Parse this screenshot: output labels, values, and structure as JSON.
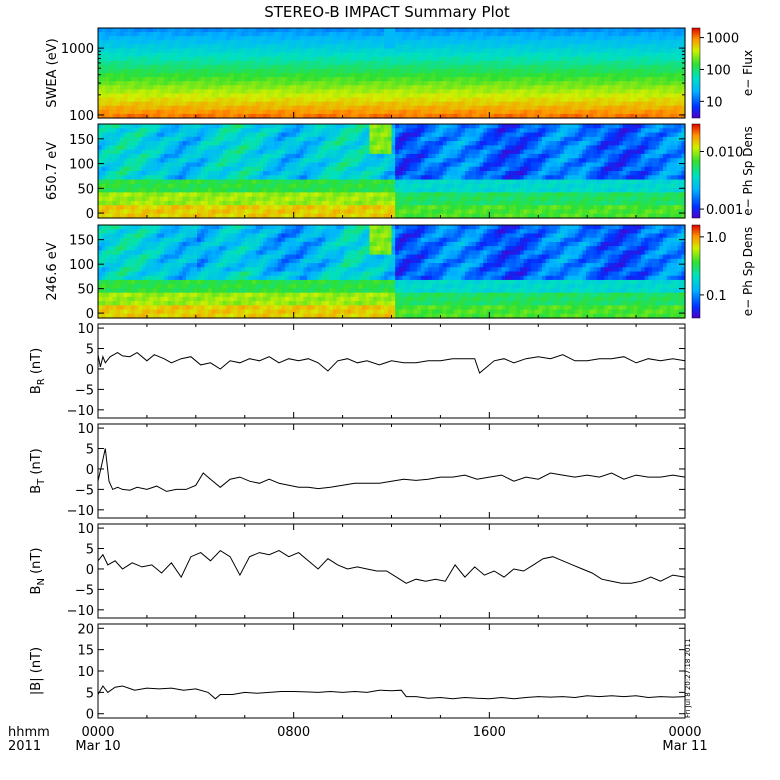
{
  "title": "STEREO-B IMPACT Summary Plot",
  "x_axis": {
    "corner_label_line1": "hhmm",
    "corner_label_line2": "2011",
    "range_hours": [
      0,
      24
    ],
    "ticks": [
      {
        "hour": 0,
        "label": "0000",
        "sublabel": "Mar 10"
      },
      {
        "hour": 8,
        "label": "0800",
        "sublabel": ""
      },
      {
        "hour": 16,
        "label": "1600",
        "sublabel": ""
      },
      {
        "hour": 24,
        "label": "0000",
        "sublabel": "Mar 11"
      }
    ]
  },
  "timestamp": "Fri Jul 8 20:27:18 2011",
  "spectrograms": [
    {
      "id": "swea",
      "ylabel": "SWEA (eV)",
      "yscale": "log",
      "ylim": [
        90,
        2000
      ],
      "yticks": [
        {
          "v": 100,
          "label": "100"
        },
        {
          "v": 1000,
          "label": "1000"
        }
      ],
      "colorbar": {
        "label": "e− Flux",
        "scale": "log",
        "range": [
          3,
          2000
        ],
        "ticks": [
          {
            "v": 10,
            "label": "10"
          },
          {
            "v": 100,
            "label": "100"
          },
          {
            "v": 1000,
            "label": "1000"
          }
        ]
      }
    },
    {
      "id": "pad650",
      "ylabel": "650.7 eV",
      "yscale": "linear",
      "ylim": [
        -10,
        180
      ],
      "yticks": [
        {
          "v": 0,
          "label": "0"
        },
        {
          "v": 50,
          "label": "50"
        },
        {
          "v": 100,
          "label": "100"
        },
        {
          "v": 150,
          "label": "150"
        }
      ],
      "colorbar": {
        "label": "e− Ph Sp Dens",
        "scale": "log",
        "range": [
          0.0007,
          0.03
        ],
        "ticks": [
          {
            "v": 0.001,
            "label": "0.001"
          },
          {
            "v": 0.01,
            "label": "0.010"
          }
        ]
      }
    },
    {
      "id": "pad246",
      "ylabel": "246.6 eV",
      "yscale": "linear",
      "ylim": [
        -10,
        180
      ],
      "yticks": [
        {
          "v": 0,
          "label": "0"
        },
        {
          "v": 50,
          "label": "50"
        },
        {
          "v": 100,
          "label": "100"
        },
        {
          "v": 150,
          "label": "150"
        }
      ],
      "colorbar": {
        "label": "e− Ph Sp Dens",
        "scale": "log",
        "range": [
          0.04,
          1.6
        ],
        "ticks": [
          {
            "v": 0.1,
            "label": "0.1"
          },
          {
            "v": 1.0,
            "label": "1.0"
          }
        ]
      }
    }
  ],
  "chart_data": [
    {
      "type": "line",
      "panel": "BR",
      "ylabel_main": "B",
      "ylabel_sub": "R",
      "ylabel_unit": "(nT)",
      "ylim": [
        -12,
        11
      ],
      "yticks": [
        {
          "v": -10,
          "label": "−10"
        },
        {
          "v": -5,
          "label": "−5"
        },
        {
          "v": 0,
          "label": "0"
        },
        {
          "v": 5,
          "label": "5"
        },
        {
          "v": 10,
          "label": "10"
        }
      ],
      "x": [
        0,
        0.1,
        0.2,
        0.3,
        0.5,
        0.8,
        1.0,
        1.3,
        1.6,
        2.0,
        2.3,
        2.7,
        3.0,
        3.4,
        3.8,
        4.2,
        4.6,
        5.0,
        5.4,
        5.8,
        6.2,
        6.6,
        7.0,
        7.4,
        7.8,
        8.2,
        8.6,
        9.0,
        9.4,
        9.8,
        10.2,
        10.6,
        11.0,
        11.5,
        12.0,
        12.5,
        13.0,
        13.5,
        14.0,
        14.5,
        15.0,
        15.4,
        15.6,
        15.8,
        16.2,
        16.6,
        17.0,
        17.5,
        18.0,
        18.5,
        19.0,
        19.5,
        20.0,
        20.5,
        21.0,
        21.5,
        22.0,
        22.5,
        23.0,
        23.5,
        24.0
      ],
      "y": [
        3.5,
        0.5,
        3,
        1.5,
        3,
        4,
        3.2,
        3,
        4,
        2,
        3.5,
        2.5,
        1.5,
        2.5,
        3,
        1,
        1.5,
        0,
        2,
        1.5,
        2.5,
        2,
        3,
        1.5,
        2.5,
        2,
        2.5,
        1.5,
        -0.5,
        2,
        2.5,
        1.5,
        2,
        1,
        2,
        1.5,
        1.5,
        2,
        2,
        2.5,
        2.5,
        2.5,
        -1,
        0,
        2,
        2.5,
        1.5,
        2.5,
        3,
        2.5,
        3.5,
        2,
        2,
        2.5,
        2.5,
        3,
        1.5,
        2.5,
        2,
        2.5,
        2
      ]
    },
    {
      "type": "line",
      "panel": "BT",
      "ylabel_main": "B",
      "ylabel_sub": "T",
      "ylabel_unit": "(nT)",
      "ylim": [
        -12,
        11
      ],
      "yticks": [
        {
          "v": -10,
          "label": "−10"
        },
        {
          "v": -5,
          "label": "−5"
        },
        {
          "v": 0,
          "label": "0"
        },
        {
          "v": 5,
          "label": "5"
        },
        {
          "v": 10,
          "label": "10"
        }
      ],
      "x": [
        0,
        0.15,
        0.3,
        0.45,
        0.6,
        0.8,
        1.0,
        1.3,
        1.6,
        2.0,
        2.4,
        2.8,
        3.2,
        3.6,
        4.0,
        4.3,
        4.6,
        5.0,
        5.4,
        5.8,
        6.2,
        6.6,
        7.0,
        7.4,
        7.8,
        8.2,
        8.6,
        9.0,
        9.5,
        10.0,
        10.5,
        11.0,
        11.5,
        12.0,
        12.5,
        13.0,
        13.5,
        14.0,
        14.5,
        15.0,
        15.5,
        16.0,
        16.5,
        17.0,
        17.5,
        18.0,
        18.5,
        19.0,
        19.5,
        20.0,
        20.5,
        21.0,
        21.5,
        22.0,
        22.5,
        23.0,
        23.5,
        24.0
      ],
      "y": [
        -3,
        1,
        5,
        -3,
        -5,
        -4.5,
        -5,
        -5.2,
        -4.5,
        -5,
        -4.2,
        -5.5,
        -5,
        -5,
        -4,
        -1,
        -2.5,
        -4.5,
        -2.5,
        -2,
        -3,
        -3.5,
        -2.5,
        -3.5,
        -4,
        -4.5,
        -4.5,
        -4.8,
        -4.5,
        -4,
        -3.5,
        -3.5,
        -3.5,
        -3,
        -2.5,
        -2.8,
        -2.5,
        -2,
        -2,
        -1.5,
        -2.5,
        -2,
        -1.5,
        -3,
        -2,
        -2.5,
        -1,
        -1.5,
        -2,
        -1.5,
        -2,
        -1,
        -2.5,
        -1.5,
        -2,
        -2,
        -1.5,
        -2
      ]
    },
    {
      "type": "line",
      "panel": "BN",
      "ylabel_main": "B",
      "ylabel_sub": "N",
      "ylabel_unit": "(nT)",
      "ylim": [
        -12,
        11
      ],
      "yticks": [
        {
          "v": -10,
          "label": "−10"
        },
        {
          "v": -5,
          "label": "−5"
        },
        {
          "v": 0,
          "label": "0"
        },
        {
          "v": 5,
          "label": "5"
        },
        {
          "v": 10,
          "label": "10"
        }
      ],
      "x": [
        0,
        0.2,
        0.4,
        0.7,
        1.0,
        1.4,
        1.8,
        2.2,
        2.6,
        3.0,
        3.4,
        3.8,
        4.2,
        4.6,
        5.0,
        5.4,
        5.8,
        6.2,
        6.6,
        7.0,
        7.4,
        7.8,
        8.2,
        8.6,
        9.0,
        9.4,
        9.8,
        10.2,
        10.6,
        11.0,
        11.4,
        11.8,
        12.2,
        12.6,
        13.0,
        13.4,
        13.8,
        14.2,
        14.6,
        15.0,
        15.4,
        15.8,
        16.2,
        16.6,
        17.0,
        17.4,
        17.8,
        18.2,
        18.6,
        19.0,
        19.4,
        19.8,
        20.2,
        20.6,
        21.0,
        21.4,
        21.8,
        22.2,
        22.6,
        23.0,
        23.5,
        24.0
      ],
      "y": [
        2,
        3.5,
        1,
        2,
        0,
        1.5,
        0.5,
        1,
        -1,
        1.5,
        -2,
        3,
        4,
        2,
        4.5,
        3,
        -1.5,
        3,
        4,
        3.5,
        4.5,
        3,
        4,
        2,
        0,
        2.5,
        1,
        0,
        0.5,
        0,
        -0.5,
        -0.5,
        -2,
        -3.5,
        -2.5,
        -3,
        -2.5,
        -3,
        1,
        -2,
        0.5,
        -1.5,
        -0.5,
        -2,
        0,
        -0.5,
        1,
        2.5,
        3,
        2,
        1,
        0,
        -1,
        -2.5,
        -3,
        -3.5,
        -3.5,
        -3,
        -2,
        -3,
        -1.5,
        -2
      ]
    },
    {
      "type": "line",
      "panel": "Bmag",
      "ylabel_main": "|B|",
      "ylabel_sub": "",
      "ylabel_unit": "(nT)",
      "ylim": [
        -1,
        21
      ],
      "yticks": [
        {
          "v": 0,
          "label": "0"
        },
        {
          "v": 5,
          "label": "5"
        },
        {
          "v": 10,
          "label": "10"
        },
        {
          "v": 15,
          "label": "15"
        },
        {
          "v": 20,
          "label": "20"
        }
      ],
      "x": [
        0,
        0.2,
        0.4,
        0.7,
        1.0,
        1.5,
        2.0,
        2.5,
        3.0,
        3.5,
        4.0,
        4.5,
        4.8,
        5.0,
        5.5,
        6.0,
        6.5,
        7.0,
        7.5,
        8.0,
        8.5,
        9.0,
        9.5,
        10.0,
        10.5,
        11.0,
        11.5,
        12.0,
        12.4,
        12.6,
        13.0,
        13.5,
        14.0,
        14.5,
        15.0,
        15.5,
        16.0,
        16.5,
        17.0,
        17.5,
        18.0,
        18.5,
        19.0,
        19.5,
        20.0,
        20.5,
        21.0,
        21.5,
        22.0,
        22.5,
        23.0,
        23.5,
        24.0
      ],
      "y": [
        4.5,
        6.5,
        5,
        6.2,
        6.5,
        5.5,
        6,
        5.8,
        6,
        5.5,
        5.8,
        5,
        3.5,
        4.5,
        4.5,
        5,
        4.8,
        5,
        5.2,
        5.2,
        5.1,
        5,
        5.2,
        5,
        5.2,
        5,
        5.5,
        5.4,
        5.5,
        4,
        4,
        3.6,
        3.8,
        3.5,
        3.8,
        3.6,
        3.5,
        3.8,
        3.5,
        3.8,
        4,
        3.9,
        4,
        3.8,
        4.2,
        4,
        4.2,
        4,
        4.2,
        3.8,
        4,
        3.9,
        4
      ]
    }
  ]
}
